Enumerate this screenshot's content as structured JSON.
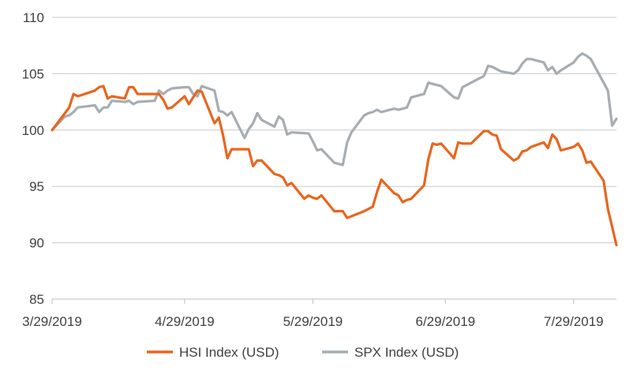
{
  "chart_data": {
    "type": "line",
    "title": "",
    "xlabel": "",
    "ylabel": "",
    "ylim": [
      85,
      110
    ],
    "y_ticks": [
      "85",
      "90",
      "95",
      "100",
      "105",
      "110"
    ],
    "x_ticks": [
      "3/29/2019",
      "4/29/2019",
      "5/29/2019",
      "6/29/2019",
      "7/29/2019"
    ],
    "x_range": [
      "2019-03-29",
      "2019-08-08"
    ],
    "grid": "horizontal",
    "legend_position": "bottom",
    "series": [
      {
        "name": "HSI Index (USD)",
        "color": "#E8661E",
        "points": [
          [
            "2019-03-29",
            100.0
          ],
          [
            "2019-04-01",
            101.5
          ],
          [
            "2019-04-02",
            102.0
          ],
          [
            "2019-04-03",
            103.2
          ],
          [
            "2019-04-04",
            103.0
          ],
          [
            "2019-04-08",
            103.5
          ],
          [
            "2019-04-09",
            103.8
          ],
          [
            "2019-04-10",
            103.9
          ],
          [
            "2019-04-11",
            102.8
          ],
          [
            "2019-04-12",
            103.0
          ],
          [
            "2019-04-15",
            102.8
          ],
          [
            "2019-04-16",
            103.8
          ],
          [
            "2019-04-17",
            103.8
          ],
          [
            "2019-04-18",
            103.2
          ],
          [
            "2019-04-23",
            103.2
          ],
          [
            "2019-04-24",
            102.7
          ],
          [
            "2019-04-25",
            101.9
          ],
          [
            "2019-04-26",
            102.0
          ],
          [
            "2019-04-29",
            103.0
          ],
          [
            "2019-04-30",
            102.3
          ],
          [
            "2019-05-02",
            103.5
          ],
          [
            "2019-05-03",
            103.4
          ],
          [
            "2019-05-06",
            100.6
          ],
          [
            "2019-05-07",
            101.1
          ],
          [
            "2019-05-08",
            99.5
          ],
          [
            "2019-05-09",
            97.5
          ],
          [
            "2019-05-10",
            98.3
          ],
          [
            "2019-05-14",
            98.3
          ],
          [
            "2019-05-15",
            96.8
          ],
          [
            "2019-05-16",
            97.3
          ],
          [
            "2019-05-17",
            97.3
          ],
          [
            "2019-05-20",
            96.1
          ],
          [
            "2019-05-21",
            96.0
          ],
          [
            "2019-05-22",
            95.8
          ],
          [
            "2019-05-23",
            95.1
          ],
          [
            "2019-05-24",
            95.3
          ],
          [
            "2019-05-27",
            93.9
          ],
          [
            "2019-05-28",
            94.2
          ],
          [
            "2019-05-29",
            94.0
          ],
          [
            "2019-05-30",
            93.9
          ],
          [
            "2019-05-31",
            94.2
          ],
          [
            "2019-06-03",
            92.8
          ],
          [
            "2019-06-04",
            92.8
          ],
          [
            "2019-06-05",
            92.8
          ],
          [
            "2019-06-06",
            92.2
          ],
          [
            "2019-06-10",
            92.8
          ],
          [
            "2019-06-11",
            93.0
          ],
          [
            "2019-06-12",
            93.2
          ],
          [
            "2019-06-13",
            94.5
          ],
          [
            "2019-06-14",
            95.6
          ],
          [
            "2019-06-17",
            94.4
          ],
          [
            "2019-06-18",
            94.2
          ],
          [
            "2019-06-19",
            93.6
          ],
          [
            "2019-06-20",
            93.8
          ],
          [
            "2019-06-21",
            93.9
          ],
          [
            "2019-06-24",
            95.1
          ],
          [
            "2019-06-25",
            97.4
          ],
          [
            "2019-06-26",
            98.8
          ],
          [
            "2019-06-27",
            98.7
          ],
          [
            "2019-06-28",
            98.8
          ],
          [
            "2019-07-01",
            97.5
          ],
          [
            "2019-07-02",
            98.9
          ],
          [
            "2019-07-03",
            98.8
          ],
          [
            "2019-07-04",
            98.8
          ],
          [
            "2019-07-05",
            98.8
          ],
          [
            "2019-07-08",
            99.9
          ],
          [
            "2019-07-09",
            99.9
          ],
          [
            "2019-07-10",
            99.6
          ],
          [
            "2019-07-11",
            99.5
          ],
          [
            "2019-07-12",
            98.3
          ],
          [
            "2019-07-15",
            97.3
          ],
          [
            "2019-07-16",
            97.5
          ],
          [
            "2019-07-17",
            98.1
          ],
          [
            "2019-07-18",
            98.2
          ],
          [
            "2019-07-19",
            98.5
          ],
          [
            "2019-07-22",
            98.9
          ],
          [
            "2019-07-23",
            98.4
          ],
          [
            "2019-07-24",
            99.6
          ],
          [
            "2019-07-25",
            99.2
          ],
          [
            "2019-07-26",
            98.2
          ],
          [
            "2019-07-29",
            98.5
          ],
          [
            "2019-07-30",
            98.8
          ],
          [
            "2019-07-31",
            98.2
          ],
          [
            "2019-08-01",
            97.1
          ],
          [
            "2019-08-02",
            97.2
          ],
          [
            "2019-08-05",
            95.5
          ],
          [
            "2019-08-06",
            93.0
          ],
          [
            "2019-08-07",
            91.4
          ],
          [
            "2019-08-08",
            89.8
          ]
        ]
      },
      {
        "name": "SPX Index (USD)",
        "color": "#A7ADB2",
        "points": [
          [
            "2019-03-29",
            100.0
          ],
          [
            "2019-04-01",
            101.2
          ],
          [
            "2019-04-02",
            101.3
          ],
          [
            "2019-04-03",
            101.6
          ],
          [
            "2019-04-04",
            102.0
          ],
          [
            "2019-04-08",
            102.2
          ],
          [
            "2019-04-09",
            101.6
          ],
          [
            "2019-04-10",
            102.0
          ],
          [
            "2019-04-11",
            102.0
          ],
          [
            "2019-04-12",
            102.6
          ],
          [
            "2019-04-15",
            102.5
          ],
          [
            "2019-04-16",
            102.6
          ],
          [
            "2019-04-17",
            102.3
          ],
          [
            "2019-04-18",
            102.5
          ],
          [
            "2019-04-22",
            102.6
          ],
          [
            "2019-04-23",
            103.5
          ],
          [
            "2019-04-24",
            103.2
          ],
          [
            "2019-04-25",
            103.5
          ],
          [
            "2019-04-26",
            103.7
          ],
          [
            "2019-04-29",
            103.8
          ],
          [
            "2019-04-30",
            103.8
          ],
          [
            "2019-05-01",
            103.2
          ],
          [
            "2019-05-02",
            103.0
          ],
          [
            "2019-05-03",
            103.9
          ],
          [
            "2019-05-06",
            103.5
          ],
          [
            "2019-05-07",
            101.7
          ],
          [
            "2019-05-08",
            101.6
          ],
          [
            "2019-05-09",
            101.3
          ],
          [
            "2019-05-10",
            101.6
          ],
          [
            "2019-05-13",
            99.3
          ],
          [
            "2019-05-14",
            100.1
          ],
          [
            "2019-05-15",
            100.6
          ],
          [
            "2019-05-16",
            101.5
          ],
          [
            "2019-05-17",
            100.9
          ],
          [
            "2019-05-20",
            100.3
          ],
          [
            "2019-05-21",
            101.2
          ],
          [
            "2019-05-22",
            100.9
          ],
          [
            "2019-05-23",
            99.6
          ],
          [
            "2019-05-24",
            99.8
          ],
          [
            "2019-05-28",
            99.7
          ],
          [
            "2019-05-29",
            99.0
          ],
          [
            "2019-05-30",
            98.2
          ],
          [
            "2019-05-31",
            98.3
          ],
          [
            "2019-06-03",
            97.1
          ],
          [
            "2019-06-04",
            97.0
          ],
          [
            "2019-06-05",
            96.9
          ],
          [
            "2019-06-06",
            98.9
          ],
          [
            "2019-06-07",
            99.8
          ],
          [
            "2019-06-10",
            101.3
          ],
          [
            "2019-06-11",
            101.5
          ],
          [
            "2019-06-12",
            101.6
          ],
          [
            "2019-06-13",
            101.8
          ],
          [
            "2019-06-14",
            101.6
          ],
          [
            "2019-06-17",
            101.9
          ],
          [
            "2019-06-18",
            101.8
          ],
          [
            "2019-06-19",
            101.9
          ],
          [
            "2019-06-20",
            102.0
          ],
          [
            "2019-06-21",
            102.9
          ],
          [
            "2019-06-24",
            103.2
          ],
          [
            "2019-06-25",
            104.2
          ],
          [
            "2019-06-26",
            104.1
          ],
          [
            "2019-06-27",
            104.0
          ],
          [
            "2019-06-28",
            103.9
          ],
          [
            "2019-07-01",
            102.9
          ],
          [
            "2019-07-02",
            102.8
          ],
          [
            "2019-07-03",
            103.8
          ],
          [
            "2019-07-05",
            104.2
          ],
          [
            "2019-07-08",
            104.8
          ],
          [
            "2019-07-09",
            105.7
          ],
          [
            "2019-07-10",
            105.6
          ],
          [
            "2019-07-11",
            105.4
          ],
          [
            "2019-07-12",
            105.2
          ],
          [
            "2019-07-15",
            105.0
          ],
          [
            "2019-07-16",
            105.3
          ],
          [
            "2019-07-17",
            105.9
          ],
          [
            "2019-07-18",
            106.3
          ],
          [
            "2019-07-19",
            106.3
          ],
          [
            "2019-07-22",
            106.0
          ],
          [
            "2019-07-23",
            105.3
          ],
          [
            "2019-07-24",
            105.6
          ],
          [
            "2019-07-25",
            105.0
          ],
          [
            "2019-07-26",
            105.3
          ],
          [
            "2019-07-29",
            106.0
          ],
          [
            "2019-07-30",
            106.5
          ],
          [
            "2019-07-31",
            106.8
          ],
          [
            "2019-08-01",
            106.6
          ],
          [
            "2019-08-02",
            106.3
          ],
          [
            "2019-08-05",
            104.2
          ],
          [
            "2019-08-06",
            103.5
          ],
          [
            "2019-08-07",
            100.4
          ],
          [
            "2019-08-08",
            101.0
          ]
        ]
      }
    ]
  }
}
